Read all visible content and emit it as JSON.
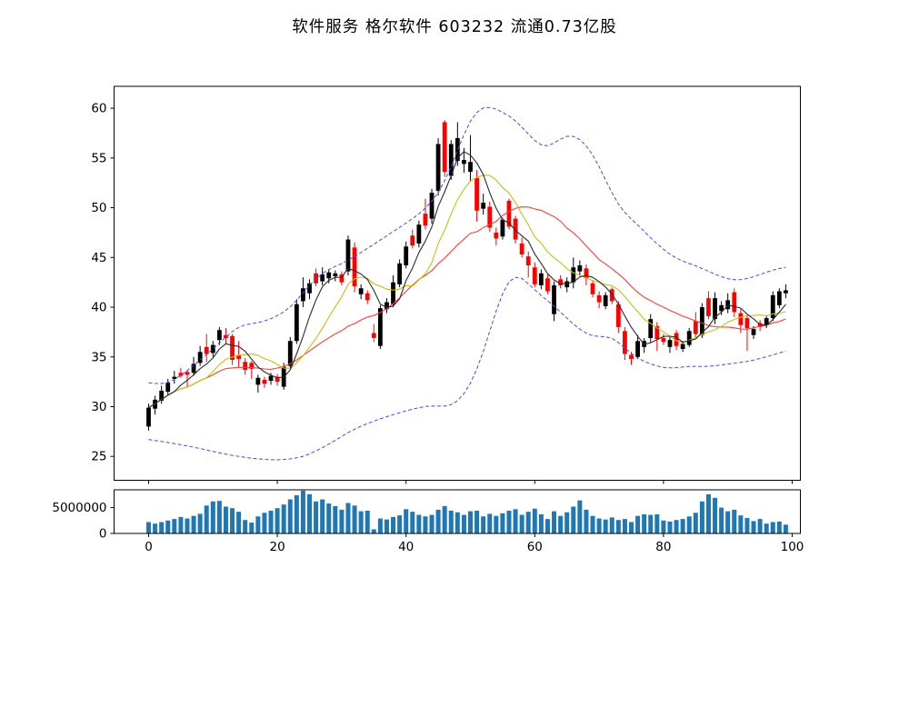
{
  "chart_data": {
    "type": "candlestick+volume",
    "title": "软件服务  格尔软件  603232  流通0.73亿股",
    "xlabel": "",
    "ylabel": "",
    "x_ticks": [
      0,
      20,
      40,
      60,
      80,
      100
    ],
    "y_ticks": [
      25,
      30,
      35,
      40,
      45,
      50,
      55,
      60
    ],
    "volume_y_ticks": [
      0,
      5000000
    ],
    "xlim": [
      -5.4,
      101.3
    ],
    "ylim": [
      22.6,
      62.2
    ],
    "volume_ylim": [
      0,
      8450000
    ],
    "grid": false,
    "legend": "none",
    "colors": {
      "up_candle": "#000000",
      "down_candle": "#ff0000",
      "ma_fast": "#2b2b2b",
      "ma_mid": "#c2c216",
      "ma_slow": "#ff3b3b",
      "band": "#4949f0",
      "volume_bar": "#1f77b4",
      "axis": "#000000",
      "background": "#ffffff"
    },
    "overlays": {
      "ma_fast_window": 5,
      "ma_mid_window": 10,
      "ma_slow_window": 20,
      "band_style": "dashed"
    },
    "band_upper_points": [
      [
        0,
        32.4
      ],
      [
        3,
        32.2
      ],
      [
        6,
        33.6
      ],
      [
        10,
        35.8
      ],
      [
        14,
        38.2
      ],
      [
        18,
        38.5
      ],
      [
        22,
        39.8
      ],
      [
        24,
        41.5
      ],
      [
        26,
        43.0
      ],
      [
        28,
        43.9
      ],
      [
        30,
        44.3
      ],
      [
        34,
        45.9
      ],
      [
        38,
        47.6
      ],
      [
        42,
        49.3
      ],
      [
        45,
        51.2
      ],
      [
        47,
        54.0
      ],
      [
        50,
        59.2
      ],
      [
        52,
        60.4
      ],
      [
        55,
        59.7
      ],
      [
        58,
        58.3
      ],
      [
        60,
        56.5
      ],
      [
        62,
        55.8
      ],
      [
        65,
        57.6
      ],
      [
        68,
        56.6
      ],
      [
        70,
        54.2
      ],
      [
        73,
        50.0
      ],
      [
        76,
        48.3
      ],
      [
        79,
        46.3
      ],
      [
        82,
        44.8
      ],
      [
        85,
        44.2
      ],
      [
        88,
        43.3
      ],
      [
        91,
        42.6
      ],
      [
        94,
        43.0
      ],
      [
        97,
        43.8
      ],
      [
        99,
        44.0
      ]
    ],
    "band_lower_points": [
      [
        0,
        26.7
      ],
      [
        4,
        26.3
      ],
      [
        8,
        25.8
      ],
      [
        12,
        25.2
      ],
      [
        16,
        24.8
      ],
      [
        20,
        24.6
      ],
      [
        24,
        24.9
      ],
      [
        28,
        26.2
      ],
      [
        32,
        27.8
      ],
      [
        36,
        28.8
      ],
      [
        40,
        29.6
      ],
      [
        44,
        30.2
      ],
      [
        46,
        29.9
      ],
      [
        48,
        30.3
      ],
      [
        50,
        32.0
      ],
      [
        52,
        35.3
      ],
      [
        54,
        39.8
      ],
      [
        56,
        43.4
      ],
      [
        58,
        43.2
      ],
      [
        60,
        41.6
      ],
      [
        63,
        40.2
      ],
      [
        66,
        38.2
      ],
      [
        69,
        36.9
      ],
      [
        72,
        37.2
      ],
      [
        75,
        35.2
      ],
      [
        78,
        34.2
      ],
      [
        81,
        33.8
      ],
      [
        84,
        34.1
      ],
      [
        87,
        34.0
      ],
      [
        90,
        34.3
      ],
      [
        93,
        34.5
      ],
      [
        96,
        35.0
      ],
      [
        99,
        35.6
      ]
    ],
    "ohlc": [
      [
        28.0,
        30.3,
        27.6,
        29.9
      ],
      [
        29.8,
        31.1,
        29.2,
        30.7
      ],
      [
        30.6,
        32.1,
        30.3,
        31.6
      ],
      [
        31.5,
        32.8,
        31.2,
        32.4
      ],
      [
        32.8,
        33.6,
        32.3,
        33.0
      ],
      [
        33.4,
        33.9,
        32.9,
        33.1
      ],
      [
        33.5,
        33.7,
        32.0,
        33.2
      ],
      [
        33.4,
        35.0,
        33.1,
        34.3
      ],
      [
        34.4,
        36.1,
        34.1,
        35.5
      ],
      [
        36.0,
        37.3,
        34.5,
        35.3
      ],
      [
        35.4,
        36.6,
        35.0,
        36.2
      ],
      [
        36.7,
        38.0,
        36.2,
        37.7
      ],
      [
        37.2,
        37.9,
        36.3,
        36.9
      ],
      [
        37.1,
        37.3,
        34.2,
        34.7
      ],
      [
        35.2,
        36.6,
        34.0,
        34.8
      ],
      [
        34.5,
        34.9,
        33.2,
        33.7
      ],
      [
        34.4,
        34.6,
        32.8,
        33.8
      ],
      [
        32.2,
        33.2,
        31.4,
        32.9
      ],
      [
        32.7,
        33.0,
        31.9,
        32.3
      ],
      [
        32.6,
        33.4,
        32.2,
        33.1
      ],
      [
        33.0,
        33.3,
        32.1,
        32.5
      ],
      [
        32.0,
        34.4,
        31.7,
        34.0
      ],
      [
        34.1,
        37.0,
        33.8,
        36.6
      ],
      [
        36.6,
        40.8,
        36.3,
        40.3
      ],
      [
        40.6,
        43.0,
        40.0,
        41.9
      ],
      [
        41.4,
        42.8,
        40.8,
        42.4
      ],
      [
        43.4,
        43.9,
        42.1,
        42.4
      ],
      [
        42.6,
        44.0,
        42.2,
        43.3
      ],
      [
        42.9,
        43.8,
        42.4,
        43.5
      ],
      [
        43.1,
        43.7,
        42.6,
        43.4
      ],
      [
        43.3,
        43.6,
        42.2,
        42.5
      ],
      [
        43.6,
        47.2,
        43.2,
        46.8
      ],
      [
        46.0,
        46.5,
        41.5,
        42.1
      ],
      [
        41.3,
        42.3,
        40.8,
        41.9
      ],
      [
        41.4,
        41.7,
        40.3,
        40.7
      ],
      [
        37.4,
        38.3,
        36.5,
        36.9
      ],
      [
        36.1,
        40.2,
        35.8,
        39.9
      ],
      [
        39.8,
        40.9,
        39.4,
        40.5
      ],
      [
        40.3,
        43.2,
        40.0,
        42.5
      ],
      [
        42.3,
        44.8,
        42.0,
        44.4
      ],
      [
        44.2,
        46.6,
        43.9,
        46.1
      ],
      [
        47.2,
        47.8,
        45.9,
        46.2
      ],
      [
        46.4,
        48.7,
        46.0,
        48.3
      ],
      [
        49.4,
        50.9,
        47.8,
        48.2
      ],
      [
        48.9,
        51.9,
        48.4,
        51.5
      ],
      [
        51.7,
        57.0,
        51.2,
        56.4
      ],
      [
        58.6,
        58.8,
        53.1,
        53.6
      ],
      [
        53.2,
        56.8,
        52.8,
        56.4
      ],
      [
        54.7,
        58.6,
        54.2,
        57.0
      ],
      [
        54.4,
        56.0,
        53.5,
        54.8
      ],
      [
        53.6,
        57.3,
        52.6,
        54.6
      ],
      [
        53.0,
        53.8,
        48.6,
        49.7
      ],
      [
        49.9,
        51.4,
        49.3,
        50.5
      ],
      [
        50.1,
        50.6,
        47.6,
        48.0
      ],
      [
        47.5,
        48.0,
        46.2,
        46.9
      ],
      [
        47.1,
        49.0,
        46.8,
        48.8
      ],
      [
        50.7,
        50.9,
        47.8,
        48.1
      ],
      [
        48.9,
        49.2,
        46.4,
        46.8
      ],
      [
        46.4,
        47.0,
        45.0,
        45.3
      ],
      [
        45.1,
        45.6,
        43.0,
        44.2
      ],
      [
        44.0,
        44.5,
        42.0,
        42.3
      ],
      [
        42.2,
        43.8,
        41.8,
        43.4
      ],
      [
        42.9,
        43.3,
        41.3,
        41.6
      ],
      [
        39.3,
        42.6,
        38.6,
        42.2
      ],
      [
        42.8,
        43.2,
        41.9,
        42.2
      ],
      [
        42.0,
        43.0,
        41.5,
        42.6
      ],
      [
        42.5,
        45.0,
        41.9,
        44.0
      ],
      [
        43.6,
        44.7,
        43.2,
        44.2
      ],
      [
        43.9,
        44.3,
        42.2,
        42.9
      ],
      [
        42.4,
        42.7,
        41.0,
        41.3
      ],
      [
        41.2,
        41.6,
        39.9,
        40.5
      ],
      [
        40.1,
        41.5,
        39.8,
        41.2
      ],
      [
        41.8,
        42.0,
        40.3,
        40.6
      ],
      [
        40.3,
        40.6,
        37.4,
        38.0
      ],
      [
        37.6,
        38.0,
        34.7,
        35.3
      ],
      [
        35.2,
        35.5,
        34.2,
        34.8
      ],
      [
        35.0,
        37.2,
        34.8,
        36.6
      ],
      [
        36.0,
        36.9,
        35.4,
        36.6
      ],
      [
        36.9,
        39.3,
        36.5,
        38.8
      ],
      [
        38.1,
        38.5,
        35.6,
        36.8
      ],
      [
        36.9,
        37.3,
        36.2,
        36.5
      ],
      [
        36.0,
        37.0,
        35.4,
        36.7
      ],
      [
        37.4,
        37.7,
        35.7,
        36.1
      ],
      [
        35.8,
        36.6,
        35.5,
        36.3
      ],
      [
        36.2,
        37.9,
        36.0,
        37.6
      ],
      [
        38.6,
        39.5,
        36.9,
        37.3
      ],
      [
        37.2,
        40.4,
        36.9,
        40.0
      ],
      [
        40.9,
        41.6,
        38.8,
        39.1
      ],
      [
        38.8,
        41.5,
        38.3,
        40.9
      ],
      [
        39.6,
        40.6,
        39.2,
        40.2
      ],
      [
        39.8,
        41.4,
        39.4,
        40.7
      ],
      [
        41.5,
        41.9,
        39.0,
        39.5
      ],
      [
        39.4,
        39.8,
        37.4,
        38.2
      ],
      [
        38.9,
        39.2,
        35.6,
        37.9
      ],
      [
        37.2,
        38.1,
        36.8,
        37.8
      ],
      [
        38.4,
        38.7,
        37.6,
        38.0
      ],
      [
        38.2,
        39.2,
        37.9,
        38.9
      ],
      [
        38.9,
        41.6,
        38.6,
        41.2
      ],
      [
        40.2,
        41.9,
        39.9,
        41.6
      ],
      [
        41.4,
        42.3,
        40.9,
        41.7
      ]
    ],
    "volume": [
      2200000,
      1900000,
      2200000,
      2500000,
      2800000,
      3200000,
      2900000,
      3400000,
      3800000,
      5400000,
      6200000,
      6300000,
      5200000,
      4900000,
      4200000,
      2600000,
      2100000,
      3300000,
      4000000,
      4400000,
      4900000,
      5600000,
      6600000,
      7400000,
      8300000,
      7600000,
      6200000,
      6600000,
      5800000,
      5300000,
      4600000,
      5900000,
      5400000,
      4300000,
      4400000,
      800000,
      2900000,
      2700000,
      3200000,
      3500000,
      4700000,
      4200000,
      3600000,
      3300000,
      3600000,
      4600000,
      5300000,
      4400000,
      4100000,
      3600000,
      4300000,
      4400000,
      3300000,
      3800000,
      3400000,
      3900000,
      4400000,
      4700000,
      3600000,
      4200000,
      4800000,
      3700000,
      2800000,
      4300000,
      3400000,
      4100000,
      5200000,
      6400000,
      4600000,
      3400000,
      2900000,
      2700000,
      3100000,
      2600000,
      2800000,
      2200000,
      3400000,
      3700000,
      3600000,
      3700000,
      2500000,
      2300000,
      2600000,
      2800000,
      3300000,
      4000000,
      6200000,
      7600000,
      6900000,
      5000000,
      4300000,
      4600000,
      3500000,
      3000000,
      2400000,
      2800000,
      1900000,
      2200000,
      2300000,
      1700000
    ]
  }
}
